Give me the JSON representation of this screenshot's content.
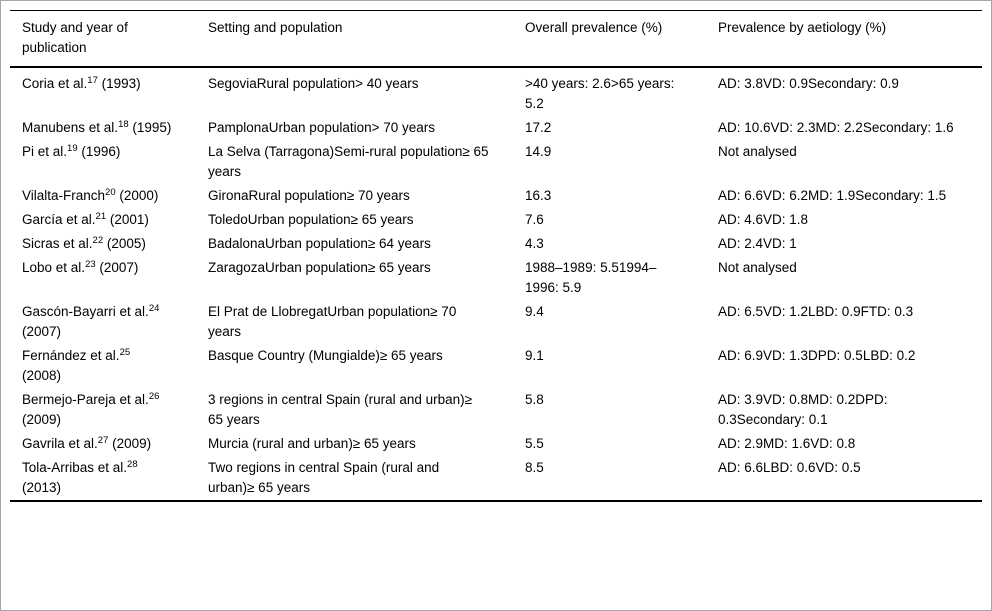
{
  "table": {
    "columns": [
      "Study and year of publication",
      "Setting and population",
      "Overall prevalence (%)",
      "Prevalence by aetiology (%)"
    ],
    "rows": [
      {
        "study_name": "Coria et al.",
        "study_ref": "17",
        "study_year": " (1993)",
        "setting": "SegoviaRural population> 40 years",
        "overall": ">40 years: 2.6>65 years: 5.2",
        "aetiology": "AD: 3.8VD: 0.9Secondary: 0.9"
      },
      {
        "study_name": "Manubens et al.",
        "study_ref": "18",
        "study_year": " (1995)",
        "setting": "PamplonaUrban population> 70 years",
        "overall": "17.2",
        "aetiology": "AD: 10.6VD: 2.3MD: 2.2Secondary: 1.6"
      },
      {
        "study_name": "Pi et al.",
        "study_ref": "19",
        "study_year": " (1996)",
        "setting": "La Selva (Tarragona)Semi-rural population≥ 65 years",
        "overall": "14.9",
        "aetiology": "Not analysed"
      },
      {
        "study_name": "Vilalta-Franch",
        "study_ref": "20",
        "study_year": " (2000)",
        "setting": "GironaRural population≥ 70 years",
        "overall": "16.3",
        "aetiology": "AD: 6.6VD: 6.2MD: 1.9Secondary: 1.5"
      },
      {
        "study_name": "García et al.",
        "study_ref": "21",
        "study_year": " (2001)",
        "setting": "ToledoUrban population≥ 65 years",
        "overall": "7.6",
        "aetiology": "AD: 4.6VD: 1.8"
      },
      {
        "study_name": "Sicras et al.",
        "study_ref": "22",
        "study_year": " (2005)",
        "setting": "BadalonaUrban population≥ 64 years",
        "overall": "4.3",
        "aetiology": "AD: 2.4VD: 1"
      },
      {
        "study_name": "Lobo et al.",
        "study_ref": "23",
        "study_year": " (2007)",
        "setting": "ZaragozaUrban population≥ 65 years",
        "overall": "1988–1989: 5.51994–1996: 5.9",
        "aetiology": "Not analysed"
      },
      {
        "study_name": "Gascón-Bayarri et al.",
        "study_ref": "24",
        "study_year": " (2007)",
        "setting": "El Prat de LlobregatUrban population≥ 70 years",
        "overall": "9.4",
        "aetiology": "AD: 6.5VD: 1.2LBD: 0.9FTD: 0.3"
      },
      {
        "study_name": "Fernández et al.",
        "study_ref": "25",
        "study_year": " (2008)",
        "setting": "Basque Country (Mungialde)≥ 65 years",
        "overall": "9.1",
        "aetiology": "AD: 6.9VD: 1.3DPD: 0.5LBD: 0.2"
      },
      {
        "study_name": "Bermejo-Pareja et al.",
        "study_ref": "26",
        "study_year": " (2009)",
        "setting": "3 regions in central Spain (rural and urban)≥ 65 years",
        "overall": "5.8",
        "aetiology": "AD: 3.9VD: 0.8MD: 0.2DPD: 0.3Secondary: 0.1"
      },
      {
        "study_name": "Gavrila et al.",
        "study_ref": "27",
        "study_year": " (2009)",
        "setting": "Murcia (rural and urban)≥ 65 years",
        "overall": "5.5",
        "aetiology": "AD: 2.9MD: 1.6VD: 0.8"
      },
      {
        "study_name": "Tola-Arribas et al.",
        "study_ref": "28",
        "study_year": " (2013)",
        "setting": "Two regions in central Spain (rural and urban)≥ 65 years",
        "overall": "8.5",
        "aetiology": "AD: 6.6LBD: 0.6VD: 0.5"
      }
    ]
  }
}
